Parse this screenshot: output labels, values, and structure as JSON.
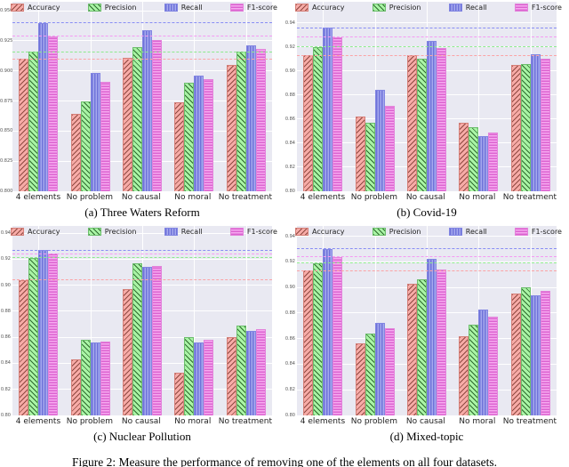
{
  "figure": {
    "caption": "Figure 2: Measure the performance of removing one of the elements on all four datasets."
  },
  "legend": {
    "items": [
      "Accuracy",
      "Precision",
      "Recall",
      "F1-score"
    ]
  },
  "colors": {
    "plot_background": "#e9e9f2",
    "gridline": "#ffffff",
    "series": {
      "accuracy": {
        "fill": "#f7aba7",
        "hatch": "#8f4a42",
        "edge": "#d47f78",
        "dashed": "#fba3a5"
      },
      "precision": {
        "fill": "#a9f4a5",
        "hatch": "#2f6b2f",
        "edge": "#6cbd6c",
        "dashed": "#8deb8d"
      },
      "recall": {
        "fill": "#a6a9ee",
        "hatch": "#6f73d9",
        "edge": "#8286e2",
        "dashed": "#888df4"
      },
      "f1-score": {
        "fill": "#f6a9f0",
        "hatch": "#dc63d0",
        "edge": "#e283da",
        "dashed": "#f59af3"
      }
    }
  },
  "chart_data": [
    {
      "type": "bar",
      "title": "(a) Three Waters Reform",
      "categories": [
        "4 elements",
        "No problem",
        "No causal",
        "No moral",
        "No treatment"
      ],
      "series": [
        {
          "name": "Accuracy",
          "values": [
            0.91,
            0.864,
            0.911,
            0.874,
            0.905
          ]
        },
        {
          "name": "Precision",
          "values": [
            0.916,
            0.875,
            0.92,
            0.89,
            0.916
          ]
        },
        {
          "name": "Recall",
          "values": [
            0.94,
            0.898,
            0.934,
            0.896,
            0.921
          ]
        },
        {
          "name": "F1-score",
          "values": [
            0.929,
            0.891,
            0.926,
            0.893,
            0.918
          ]
        }
      ],
      "baselines": [
        0.91,
        0.916,
        0.94,
        0.929
      ],
      "ylim": [
        0.8,
        0.9575
      ],
      "yticks": [
        0.8,
        0.825,
        0.85,
        0.875,
        0.9,
        0.925,
        0.95
      ],
      "ytick_decimals": 3,
      "grid": true,
      "legend_position": "top"
    },
    {
      "type": "bar",
      "title": "(b) Covid-19",
      "categories": [
        "4 elements",
        "No problem",
        "No causal",
        "No moral",
        "No treatment"
      ],
      "series": [
        {
          "name": "Accuracy",
          "values": [
            0.913,
            0.862,
            0.913,
            0.857,
            0.905
          ]
        },
        {
          "name": "Precision",
          "values": [
            0.92,
            0.857,
            0.91,
            0.853,
            0.906
          ]
        },
        {
          "name": "Recall",
          "values": [
            0.936,
            0.884,
            0.925,
            0.846,
            0.914
          ]
        },
        {
          "name": "F1-score",
          "values": [
            0.928,
            0.871,
            0.919,
            0.849,
            0.91
          ]
        }
      ],
      "baselines": [
        0.913,
        0.92,
        0.936,
        0.928
      ],
      "ylim": [
        0.8,
        0.9575
      ],
      "yticks": [
        0.8,
        0.82,
        0.84,
        0.86,
        0.88,
        0.9,
        0.92,
        0.94
      ],
      "ytick_decimals": 2,
      "grid": true,
      "legend_position": "top"
    },
    {
      "type": "bar",
      "title": "(c) Nuclear Pollution",
      "categories": [
        "4 elements",
        "No problem",
        "No causal",
        "No moral",
        "No treatment"
      ],
      "series": [
        {
          "name": "Accuracy",
          "values": [
            0.904,
            0.843,
            0.897,
            0.833,
            0.86
          ]
        },
        {
          "name": "Precision",
          "values": [
            0.921,
            0.858,
            0.917,
            0.86,
            0.869
          ]
        },
        {
          "name": "Recall",
          "values": [
            0.927,
            0.856,
            0.914,
            0.856,
            0.865
          ]
        },
        {
          "name": "F1-score",
          "values": [
            0.924,
            0.857,
            0.915,
            0.858,
            0.866
          ]
        }
      ],
      "baselines": [
        0.904,
        0.921,
        0.927,
        0.924
      ],
      "ylim": [
        0.8,
        0.9455
      ],
      "yticks": [
        0.8,
        0.82,
        0.84,
        0.86,
        0.88,
        0.9,
        0.92,
        0.94
      ],
      "ytick_decimals": 2,
      "grid": true,
      "legend_position": "top"
    },
    {
      "type": "bar",
      "title": "(d) Mixed-topic",
      "categories": [
        "4 elements",
        "No problem",
        "No causal",
        "No moral",
        "No treatment"
      ],
      "series": [
        {
          "name": "Accuracy",
          "values": [
            0.913,
            0.856,
            0.903,
            0.862,
            0.895
          ]
        },
        {
          "name": "Precision",
          "values": [
            0.919,
            0.864,
            0.906,
            0.871,
            0.9
          ]
        },
        {
          "name": "Recall",
          "values": [
            0.93,
            0.872,
            0.922,
            0.883,
            0.894
          ]
        },
        {
          "name": "F1-score",
          "values": [
            0.924,
            0.868,
            0.914,
            0.877,
            0.897
          ]
        }
      ],
      "baselines": [
        0.913,
        0.919,
        0.93,
        0.924
      ],
      "ylim": [
        0.8,
        0.948
      ],
      "yticks": [
        0.8,
        0.82,
        0.84,
        0.86,
        0.88,
        0.9,
        0.92,
        0.94
      ],
      "ytick_decimals": 2,
      "grid": true,
      "legend_position": "top"
    }
  ]
}
